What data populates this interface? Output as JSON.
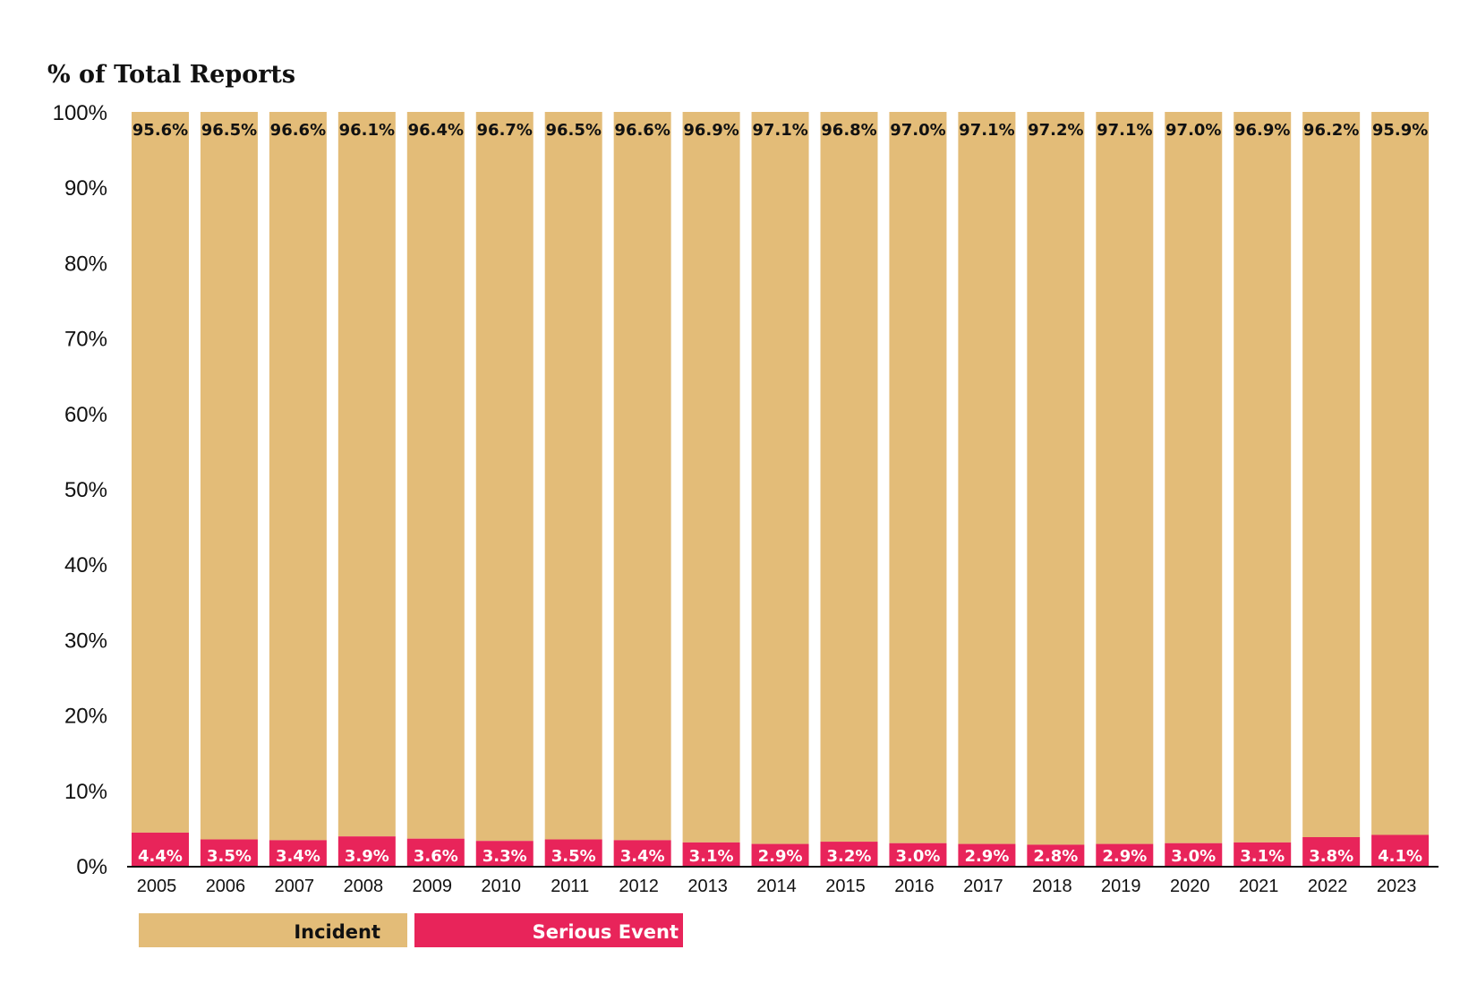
{
  "chart_data": {
    "type": "bar",
    "stacked": true,
    "title": "% of Total Reports",
    "ylim": [
      0,
      100
    ],
    "yticks": [
      "0%",
      "10%",
      "20%",
      "30%",
      "40%",
      "50%",
      "60%",
      "70%",
      "80%",
      "90%",
      "100%"
    ],
    "categories": [
      "2005",
      "2006",
      "2007",
      "2008",
      "2009",
      "2010",
      "2011",
      "2012",
      "2013",
      "2014",
      "2015",
      "2016",
      "2017",
      "2018",
      "2019",
      "2020",
      "2021",
      "2022",
      "2023"
    ],
    "series": [
      {
        "name": "Incident",
        "color": "#E3BC78",
        "values": [
          95.6,
          96.5,
          96.6,
          96.1,
          96.4,
          96.7,
          96.5,
          96.6,
          96.9,
          97.1,
          96.8,
          97.0,
          97.1,
          97.2,
          97.1,
          97.0,
          96.9,
          96.2,
          95.9
        ],
        "labels": [
          "95.6%",
          "96.5%",
          "96.6%",
          "96.1%",
          "96.4%",
          "96.7%",
          "96.5%",
          "96.6%",
          "96.9%",
          "97.1%",
          "96.8%",
          "97.0%",
          "97.1%",
          "97.2%",
          "97.1%",
          "97.0%",
          "96.9%",
          "96.2%",
          "95.9%"
        ],
        "label_color": "#111111"
      },
      {
        "name": "Serious Event",
        "color": "#E8245A",
        "values": [
          4.4,
          3.5,
          3.4,
          3.9,
          3.6,
          3.3,
          3.5,
          3.4,
          3.1,
          2.9,
          3.2,
          3.0,
          2.9,
          2.8,
          2.9,
          3.0,
          3.1,
          3.8,
          4.1
        ],
        "labels": [
          "4.4%",
          "3.5%",
          "3.4%",
          "3.9%",
          "3.6%",
          "3.3%",
          "3.5%",
          "3.4%",
          "3.1%",
          "2.9%",
          "3.2%",
          "3.0%",
          "2.9%",
          "2.8%",
          "2.9%",
          "3.0%",
          "3.1%",
          "3.8%",
          "4.1%"
        ],
        "label_color": "#ffffff"
      }
    ],
    "legend": "bottom-left",
    "grid": false
  }
}
